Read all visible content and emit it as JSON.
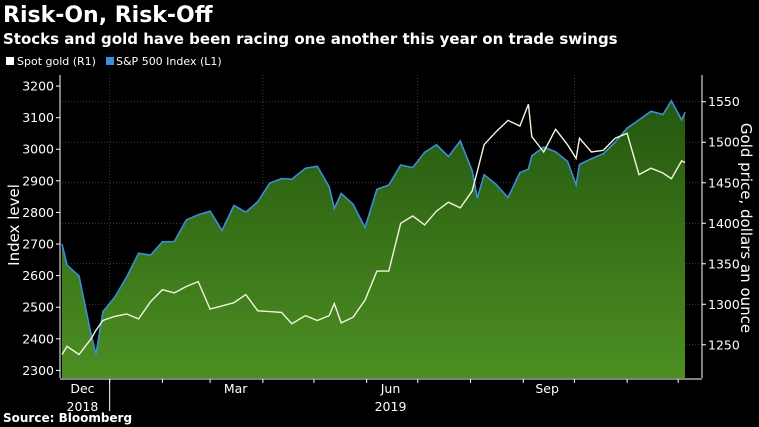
{
  "chart_data": {
    "type": "line",
    "title": "Risk-On, Risk-Off",
    "subtitle": "Stocks and gold have been racing one another this year on trade swings",
    "source": "Source: Bloomberg",
    "ylabel_left": "Index level",
    "ylabel_right": "Gold price, dollars an ounce",
    "ylim_left": [
      2276,
      3235
    ],
    "ylim_right": [
      1209,
      1583
    ],
    "xlim": [
      "2018-12-04",
      "2019-12-05"
    ],
    "left_ticks": [
      "2300",
      "2400",
      "2500",
      "2600",
      "2700",
      "2800",
      "2900",
      "3000",
      "3100",
      "3200"
    ],
    "right_ticks": [
      "1250",
      "1300",
      "1350",
      "1400",
      "1450",
      "1500",
      "1550"
    ],
    "x_ticks": [
      {
        "label": "Dec",
        "year": "2018",
        "date": "2018-12-16"
      },
      {
        "label": "Mar",
        "year": "",
        "date": "2019-03-16"
      },
      {
        "label": "Jun",
        "year": "2019",
        "date": "2019-06-15"
      },
      {
        "label": "Sep",
        "year": "",
        "date": "2019-09-15"
      }
    ],
    "grid": true,
    "legend_placement": "top-left",
    "colors": {
      "sp500": "#3a8fd9",
      "gold": "#f2f5dc",
      "area_top": "#24570f",
      "area_bottom": "#4d8f22",
      "background": "#000000"
    },
    "x": [
      "2018-12-04",
      "2018-12-07",
      "2018-12-14",
      "2018-12-21",
      "2018-12-24",
      "2018-12-28",
      "2019-01-04",
      "2019-01-11",
      "2019-01-18",
      "2019-01-25",
      "2019-02-01",
      "2019-02-08",
      "2019-02-15",
      "2019-02-22",
      "2019-03-01",
      "2019-03-08",
      "2019-03-15",
      "2019-03-22",
      "2019-03-29",
      "2019-04-05",
      "2019-04-12",
      "2019-04-18",
      "2019-04-26",
      "2019-05-03",
      "2019-05-10",
      "2019-05-13",
      "2019-05-17",
      "2019-05-24",
      "2019-05-31",
      "2019-06-07",
      "2019-06-14",
      "2019-06-21",
      "2019-06-28",
      "2019-07-05",
      "2019-07-12",
      "2019-07-19",
      "2019-07-26",
      "2019-08-02",
      "2019-08-05",
      "2019-08-09",
      "2019-08-16",
      "2019-08-23",
      "2019-08-30",
      "2019-09-04",
      "2019-09-06",
      "2019-09-13",
      "2019-09-20",
      "2019-09-27",
      "2019-10-02",
      "2019-10-04",
      "2019-10-11",
      "2019-10-18",
      "2019-10-25",
      "2019-11-01",
      "2019-11-08",
      "2019-11-15",
      "2019-11-22",
      "2019-11-27",
      "2019-12-03",
      "2019-12-05"
    ],
    "series": [
      {
        "name": "S&P 500 Index (L1)",
        "axis": "left",
        "style": "area",
        "values": [
          2700,
          2633,
          2599,
          2417,
          2351,
          2486,
          2532,
          2596,
          2671,
          2665,
          2707,
          2708,
          2776,
          2793,
          2804,
          2743,
          2822,
          2801,
          2834,
          2893,
          2907,
          2905,
          2940,
          2946,
          2881,
          2812,
          2860,
          2826,
          2752,
          2873,
          2887,
          2950,
          2942,
          2990,
          3014,
          2977,
          3026,
          2932,
          2845,
          2919,
          2889,
          2847,
          2926,
          2937,
          2979,
          3007,
          2992,
          2962,
          2888,
          2952,
          2970,
          2986,
          3023,
          3067,
          3093,
          3120,
          3110,
          3153,
          3093,
          3117
        ]
      },
      {
        "name": "Spot gold (R1)",
        "axis": "right",
        "style": "line",
        "values": [
          1238,
          1248,
          1238,
          1257,
          1268,
          1280,
          1285,
          1288,
          1282,
          1303,
          1318,
          1314,
          1322,
          1328,
          1294,
          1298,
          1302,
          1312,
          1292,
          1291,
          1290,
          1276,
          1286,
          1280,
          1286,
          1301,
          1277,
          1284,
          1305,
          1341,
          1341,
          1400,
          1409,
          1398,
          1415,
          1426,
          1419,
          1440,
          1464,
          1497,
          1513,
          1527,
          1520,
          1547,
          1507,
          1488,
          1516,
          1497,
          1480,
          1505,
          1488,
          1490,
          1505,
          1511,
          1460,
          1468,
          1462,
          1455,
          1477,
          1475
        ]
      }
    ]
  }
}
